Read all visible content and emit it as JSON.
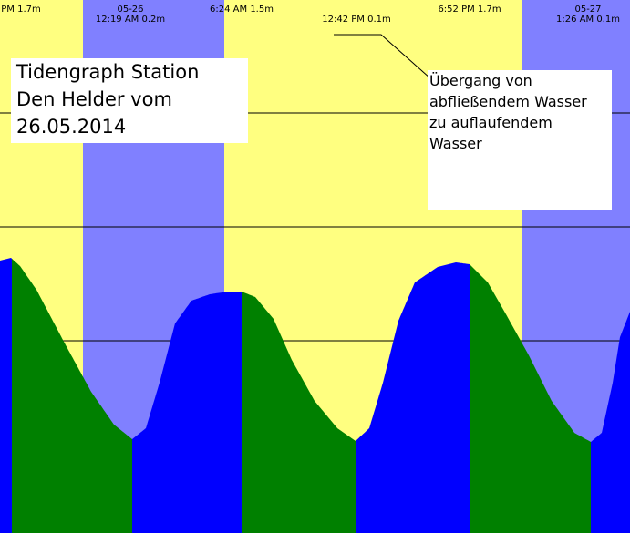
{
  "chart_data": {
    "type": "area",
    "title_lines": [
      "Tidengraph Station",
      "Den Helder vom",
      "26.05.2014"
    ],
    "annotation_lines": [
      "Übergang von",
      "abfließendem Wasser",
      "zu auflaufendem",
      "Wasser"
    ],
    "tide_events": [
      {
        "label": "PM 1.7m",
        "date": ""
      },
      {
        "label": "12:19 AM 0.2m",
        "date": "05-26"
      },
      {
        "label": "6:24 AM 1.5m",
        "date": ""
      },
      {
        "label": "12:42 PM 0.1m",
        "date": ""
      },
      {
        "label": "6:52 PM 1.7m",
        "date": ""
      },
      {
        "label": "1:26 AM 0.1m",
        "date": "05-27"
      }
    ],
    "series": [
      {
        "type": "rising",
        "color": "#0000ff"
      },
      {
        "type": "falling",
        "color": "#008000"
      }
    ],
    "colors": {
      "day_background": "#ffff80",
      "night_background": "#8080ff",
      "annotation_box": "#ffffff",
      "leader_line": "#000000"
    },
    "grid": true
  }
}
